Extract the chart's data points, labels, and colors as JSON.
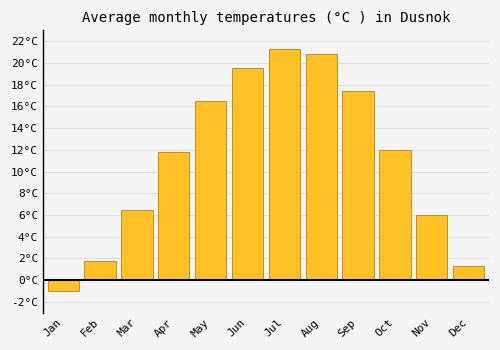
{
  "months": [
    "Jan",
    "Feb",
    "Mar",
    "Apr",
    "May",
    "Jun",
    "Jul",
    "Aug",
    "Sep",
    "Oct",
    "Nov",
    "Dec"
  ],
  "values": [
    -1.0,
    1.8,
    6.5,
    11.8,
    16.5,
    19.5,
    21.3,
    20.8,
    17.4,
    12.0,
    6.0,
    1.3
  ],
  "bar_color": "#FFC125",
  "bar_edge_color": "#B8860B",
  "title": "Average monthly temperatures (°C ) in Dusnok",
  "ylim": [
    -3,
    23
  ],
  "yticks": [
    0,
    2,
    4,
    6,
    8,
    10,
    12,
    14,
    16,
    18,
    20,
    22
  ],
  "ytick_labels": [
    "0°C",
    "2°C",
    "4°C",
    "6°C",
    "8°C",
    "10°C",
    "12°C",
    "14°C",
    "16°C",
    "18°C",
    "20°C",
    "22°C"
  ],
  "background_color": "#f5f5f5",
  "plot_bg_color": "#f5f5f5",
  "grid_color": "#e0e0e0",
  "title_fontsize": 10,
  "tick_fontsize": 8,
  "zero_line_color": "#000000",
  "figsize": [
    5.0,
    3.5
  ],
  "dpi": 100
}
